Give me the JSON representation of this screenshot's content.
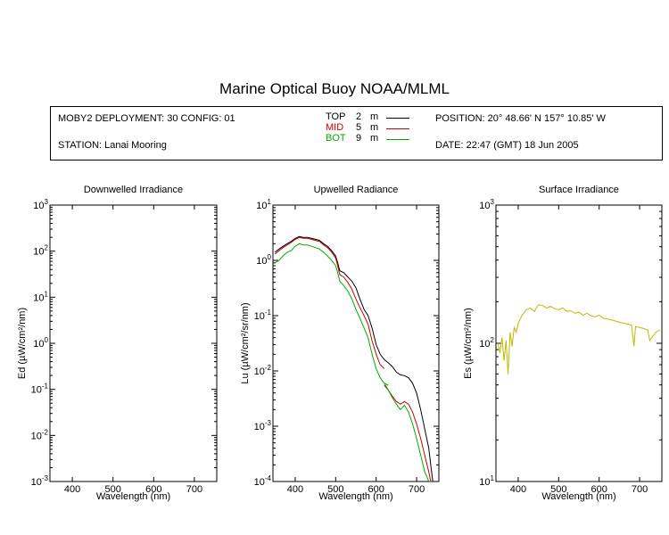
{
  "title": "Marine Optical Buoy NOAA/MLML",
  "header": {
    "deployment": "MOBY2 DEPLOYMENT: 30 CONFIG: 01",
    "station": "STATION: Lanai Mooring",
    "position": "POSITION: 20° 48.66' N   157° 10.85' W",
    "date": "DATE: 22:47 (GMT) 18 Jun 2005",
    "depths": [
      {
        "name": "TOP",
        "depth": "2",
        "unit": "m",
        "color": "#000000"
      },
      {
        "name": "MID",
        "depth": "5",
        "unit": "m",
        "color": "#cc0000"
      },
      {
        "name": "BOT",
        "depth": "9",
        "unit": "m",
        "color": "#00aa00"
      }
    ]
  },
  "chart_data": [
    {
      "type": "line",
      "title": "Downwelled Irradiance",
      "xlabel": "Wavelength (nm)",
      "ylabel": "Ed  (µW/cm²/nm)",
      "xlim": [
        345,
        755
      ],
      "ylim": [
        0.001,
        1000
      ],
      "yscale": "log",
      "xticks": [
        400,
        500,
        600,
        700
      ],
      "yticks": [
        {
          "value": 0.001,
          "label": "10",
          "exp": "-3"
        },
        {
          "value": 0.01,
          "label": "10",
          "exp": "-2"
        },
        {
          "value": 0.1,
          "label": "10",
          "exp": "-1"
        },
        {
          "value": 1,
          "label": "10",
          "exp": "0"
        },
        {
          "value": 10,
          "label": "10",
          "exp": "1"
        },
        {
          "value": 100,
          "label": "10",
          "exp": "2"
        },
        {
          "value": 1000,
          "label": "10",
          "exp": "3"
        }
      ],
      "series": []
    },
    {
      "type": "line",
      "title": "Upwelled Radiance",
      "xlabel": "Wavelength (nm)",
      "ylabel": "Lu  (µW/cm²/sr/nm)",
      "xlim": [
        345,
        755
      ],
      "ylim": [
        0.0001,
        10
      ],
      "yscale": "log",
      "xticks": [
        400,
        500,
        600,
        700
      ],
      "yticks": [
        {
          "value": 0.0001,
          "label": "10",
          "exp": "-4"
        },
        {
          "value": 0.001,
          "label": "10",
          "exp": "-3"
        },
        {
          "value": 0.01,
          "label": "10",
          "exp": "-2"
        },
        {
          "value": 0.1,
          "label": "10",
          "exp": "-1"
        },
        {
          "value": 1,
          "label": "10",
          "exp": "0"
        },
        {
          "value": 10,
          "label": "10",
          "exp": "1"
        }
      ],
      "series": [
        {
          "name": "TOP",
          "color": "#000000",
          "x": [
            350,
            360,
            370,
            380,
            390,
            400,
            410,
            420,
            430,
            440,
            450,
            460,
            470,
            480,
            490,
            500,
            505,
            510,
            520,
            530,
            540,
            550,
            560,
            570,
            580,
            590,
            600,
            610,
            620,
            630,
            640,
            650,
            660,
            670,
            680,
            690,
            700,
            710,
            720,
            730,
            735,
            740
          ],
          "y": [
            1.4,
            1.6,
            1.8,
            2.0,
            2.2,
            2.5,
            2.7,
            2.6,
            2.6,
            2.5,
            2.4,
            2.3,
            2.0,
            1.8,
            1.5,
            1.2,
            0.9,
            0.65,
            0.6,
            0.5,
            0.42,
            0.32,
            0.2,
            0.13,
            0.1,
            0.06,
            0.03,
            0.02,
            0.016,
            0.014,
            0.012,
            0.0095,
            0.0085,
            0.0082,
            0.0075,
            0.006,
            0.004,
            0.002,
            0.0009,
            0.0004,
            0.0002,
            0.0001
          ]
        },
        {
          "name": "MID",
          "color": "#cc0000",
          "x": [
            350,
            360,
            370,
            380,
            390,
            400,
            410,
            420,
            430,
            440,
            450,
            460,
            470,
            480,
            490,
            500,
            505,
            510,
            520,
            530,
            540,
            550,
            560,
            570,
            580,
            590,
            600,
            610,
            620,
            null,
            620,
            630,
            640,
            650,
            660,
            670,
            680,
            690,
            700,
            710,
            720,
            730,
            735,
            740
          ],
          "y": [
            1.3,
            1.5,
            1.7,
            1.9,
            2.1,
            2.4,
            2.6,
            2.5,
            2.5,
            2.4,
            2.3,
            2.2,
            1.9,
            1.7,
            1.4,
            1.1,
            0.8,
            0.55,
            0.5,
            0.4,
            0.3,
            0.2,
            0.14,
            0.1,
            0.07,
            0.035,
            0.02,
            0.013,
            0.011,
            null,
            0.0055,
            0.0045,
            0.0035,
            0.0028,
            0.0025,
            0.0028,
            0.0025,
            0.0018,
            0.0011,
            0.0006,
            0.0003,
            0.00015,
            0.0001,
            0.0001
          ]
        },
        {
          "name": "BOT",
          "color": "#00aa00",
          "x": [
            350,
            360,
            370,
            380,
            390,
            400,
            410,
            420,
            430,
            440,
            450,
            460,
            470,
            480,
            490,
            500,
            505,
            510,
            520,
            530,
            540,
            550,
            560,
            570,
            580,
            590,
            600,
            610,
            620,
            630,
            null,
            620,
            630,
            640,
            650,
            660,
            670,
            680,
            690,
            700,
            710,
            720,
            730,
            735
          ],
          "y": [
            0.9,
            1.0,
            1.2,
            1.4,
            1.5,
            1.8,
            2.0,
            1.9,
            1.9,
            1.8,
            1.7,
            1.6,
            1.4,
            1.2,
            1.0,
            0.8,
            0.6,
            0.42,
            0.35,
            0.28,
            0.2,
            0.13,
            0.09,
            0.06,
            0.04,
            0.02,
            0.011,
            0.0075,
            0.006,
            0.0055,
            null,
            0.006,
            0.0045,
            0.0033,
            0.0025,
            0.002,
            0.0024,
            0.0018,
            0.0011,
            0.0006,
            0.0003,
            0.00015,
            0.0001,
            0.0001
          ]
        }
      ]
    },
    {
      "type": "line",
      "title": "Surface Irradiance",
      "xlabel": "Wavelength (nm)",
      "ylabel": "Es  (µW/cm²/nm)",
      "xlim": [
        345,
        755
      ],
      "ylim": [
        10,
        1000
      ],
      "yscale": "log",
      "xticks": [
        400,
        500,
        600,
        700
      ],
      "yticks": [
        {
          "value": 10,
          "label": "10",
          "exp": "1"
        },
        {
          "value": 100,
          "label": "10",
          "exp": "2"
        },
        {
          "value": 1000,
          "label": "10",
          "exp": "3"
        }
      ],
      "series": [
        {
          "name": "Es",
          "color": "#bbbb00",
          "x": [
            350,
            355,
            360,
            365,
            370,
            375,
            380,
            385,
            390,
            395,
            400,
            410,
            420,
            430,
            440,
            450,
            460,
            470,
            480,
            490,
            500,
            510,
            520,
            530,
            540,
            550,
            560,
            570,
            580,
            590,
            600,
            610,
            620,
            630,
            640,
            650,
            660,
            670,
            680,
            686,
            690,
            700,
            710,
            720,
            725,
            730,
            740,
            750
          ],
          "y": [
            100,
            85,
            110,
            75,
            105,
            60,
            120,
            95,
            130,
            120,
            140,
            160,
            175,
            180,
            170,
            190,
            188,
            180,
            185,
            178,
            175,
            180,
            170,
            172,
            165,
            168,
            160,
            165,
            158,
            155,
            160,
            152,
            150,
            148,
            145,
            142,
            140,
            138,
            135,
            95,
            132,
            130,
            128,
            125,
            105,
            110,
            120,
            125
          ]
        }
      ]
    }
  ]
}
